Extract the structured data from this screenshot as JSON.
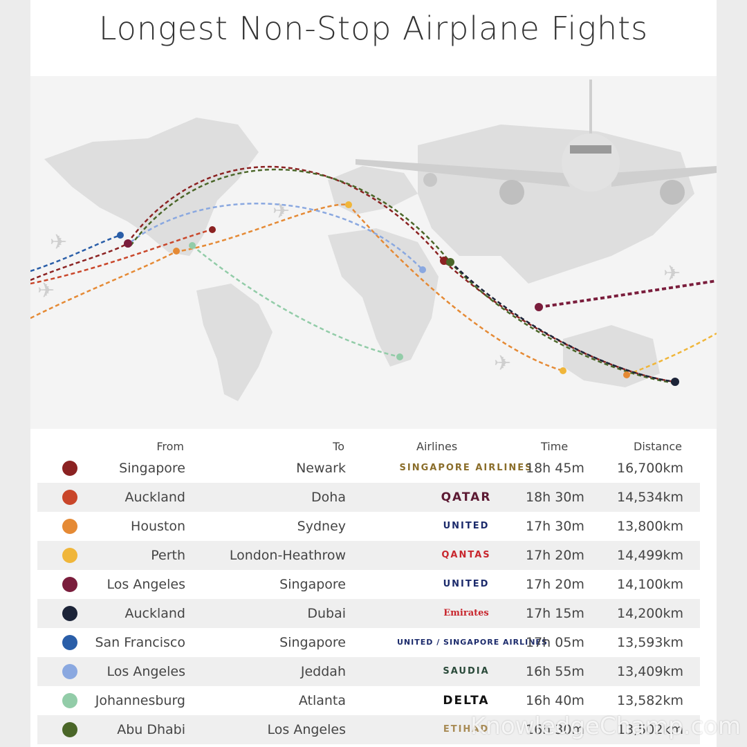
{
  "title": "Longest Non-Stop Airplane Fights",
  "headers": {
    "from": "From",
    "to": "To",
    "airlines": "Airlines",
    "time": "Time",
    "distance": "Distance"
  },
  "rows": [
    {
      "from": "Singapore",
      "to": "Newark",
      "airline": "SINGAPORE AIRLINES",
      "time": "18h 45m",
      "distance": "16,700km",
      "color": "#8b2222"
    },
    {
      "from": "Auckland",
      "to": "Doha",
      "airline": "QATAR",
      "time": "18h 30m",
      "distance": "14,534km",
      "color": "#c9462a"
    },
    {
      "from": "Houston",
      "to": "Sydney",
      "airline": "UNITED",
      "time": "17h 30m",
      "distance": "13,800km",
      "color": "#e58a35"
    },
    {
      "from": "Perth",
      "to": "London-Heathrow",
      "airline": "QANTAS",
      "time": "17h 20m",
      "distance": "14,499km",
      "color": "#f0b63a"
    },
    {
      "from": "Los Angeles",
      "to": "Singapore",
      "airline": "UNITED",
      "time": "17h 20m",
      "distance": "14,100km",
      "color": "#7a1d3c"
    },
    {
      "from": "Auckland",
      "to": "Dubai",
      "airline": "Emirates",
      "time": "17h 15m",
      "distance": "14,200km",
      "color": "#1c2438"
    },
    {
      "from": "San Francisco",
      "to": "Singapore",
      "airline": "UNITED / SINGAPORE AIRLINES",
      "time": "17h 05m",
      "distance": "13,593km",
      "color": "#2a5ea8"
    },
    {
      "from": "Los Angeles",
      "to": "Jeddah",
      "airline": "SAUDIA",
      "time": "16h 55m",
      "distance": "13,409km",
      "color": "#8aa8e0"
    },
    {
      "from": "Johannesburg",
      "to": "Atlanta",
      "airline": "DELTA",
      "time": "16h 40m",
      "distance": "13,582km",
      "color": "#92cca8"
    },
    {
      "from": "Abu Dhabi",
      "to": "Los Angeles",
      "airline": "ETIHAD",
      "time": "16h 30m",
      "distance": "13,502km",
      "color": "#4a6628"
    }
  ],
  "watermark": "KnowledgeChamp.com"
}
